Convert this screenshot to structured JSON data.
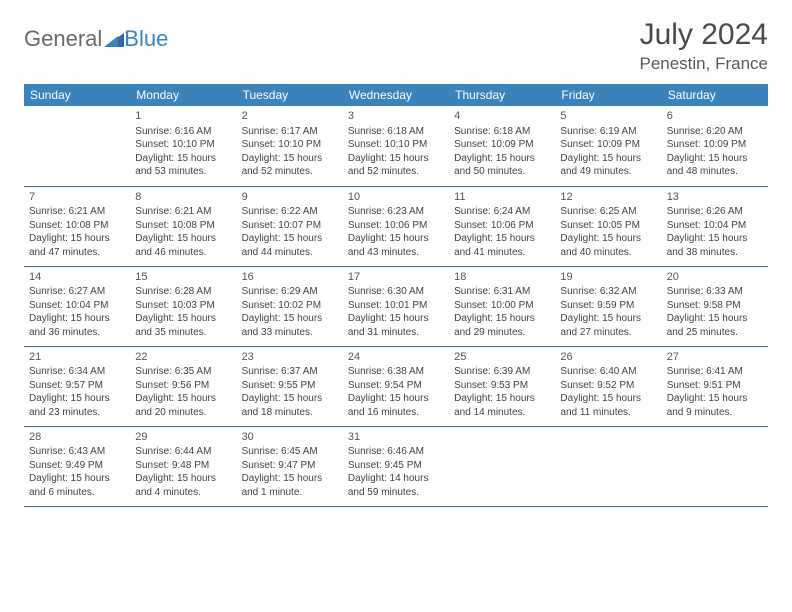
{
  "logo": {
    "part1": "General",
    "part2": "Blue"
  },
  "title": "July 2024",
  "location": "Penestin, France",
  "colors": {
    "header_bg": "#3b83bd",
    "rule": "#3b6a93"
  },
  "weekdays": [
    "Sunday",
    "Monday",
    "Tuesday",
    "Wednesday",
    "Thursday",
    "Friday",
    "Saturday"
  ],
  "weeks": [
    [
      null,
      {
        "n": "1",
        "sr": "6:16 AM",
        "ss": "10:10 PM",
        "dl": "15 hours and 53 minutes."
      },
      {
        "n": "2",
        "sr": "6:17 AM",
        "ss": "10:10 PM",
        "dl": "15 hours and 52 minutes."
      },
      {
        "n": "3",
        "sr": "6:18 AM",
        "ss": "10:10 PM",
        "dl": "15 hours and 52 minutes."
      },
      {
        "n": "4",
        "sr": "6:18 AM",
        "ss": "10:09 PM",
        "dl": "15 hours and 50 minutes."
      },
      {
        "n": "5",
        "sr": "6:19 AM",
        "ss": "10:09 PM",
        "dl": "15 hours and 49 minutes."
      },
      {
        "n": "6",
        "sr": "6:20 AM",
        "ss": "10:09 PM",
        "dl": "15 hours and 48 minutes."
      }
    ],
    [
      {
        "n": "7",
        "sr": "6:21 AM",
        "ss": "10:08 PM",
        "dl": "15 hours and 47 minutes."
      },
      {
        "n": "8",
        "sr": "6:21 AM",
        "ss": "10:08 PM",
        "dl": "15 hours and 46 minutes."
      },
      {
        "n": "9",
        "sr": "6:22 AM",
        "ss": "10:07 PM",
        "dl": "15 hours and 44 minutes."
      },
      {
        "n": "10",
        "sr": "6:23 AM",
        "ss": "10:06 PM",
        "dl": "15 hours and 43 minutes."
      },
      {
        "n": "11",
        "sr": "6:24 AM",
        "ss": "10:06 PM",
        "dl": "15 hours and 41 minutes."
      },
      {
        "n": "12",
        "sr": "6:25 AM",
        "ss": "10:05 PM",
        "dl": "15 hours and 40 minutes."
      },
      {
        "n": "13",
        "sr": "6:26 AM",
        "ss": "10:04 PM",
        "dl": "15 hours and 38 minutes."
      }
    ],
    [
      {
        "n": "14",
        "sr": "6:27 AM",
        "ss": "10:04 PM",
        "dl": "15 hours and 36 minutes."
      },
      {
        "n": "15",
        "sr": "6:28 AM",
        "ss": "10:03 PM",
        "dl": "15 hours and 35 minutes."
      },
      {
        "n": "16",
        "sr": "6:29 AM",
        "ss": "10:02 PM",
        "dl": "15 hours and 33 minutes."
      },
      {
        "n": "17",
        "sr": "6:30 AM",
        "ss": "10:01 PM",
        "dl": "15 hours and 31 minutes."
      },
      {
        "n": "18",
        "sr": "6:31 AM",
        "ss": "10:00 PM",
        "dl": "15 hours and 29 minutes."
      },
      {
        "n": "19",
        "sr": "6:32 AM",
        "ss": "9:59 PM",
        "dl": "15 hours and 27 minutes."
      },
      {
        "n": "20",
        "sr": "6:33 AM",
        "ss": "9:58 PM",
        "dl": "15 hours and 25 minutes."
      }
    ],
    [
      {
        "n": "21",
        "sr": "6:34 AM",
        "ss": "9:57 PM",
        "dl": "15 hours and 23 minutes."
      },
      {
        "n": "22",
        "sr": "6:35 AM",
        "ss": "9:56 PM",
        "dl": "15 hours and 20 minutes."
      },
      {
        "n": "23",
        "sr": "6:37 AM",
        "ss": "9:55 PM",
        "dl": "15 hours and 18 minutes."
      },
      {
        "n": "24",
        "sr": "6:38 AM",
        "ss": "9:54 PM",
        "dl": "15 hours and 16 minutes."
      },
      {
        "n": "25",
        "sr": "6:39 AM",
        "ss": "9:53 PM",
        "dl": "15 hours and 14 minutes."
      },
      {
        "n": "26",
        "sr": "6:40 AM",
        "ss": "9:52 PM",
        "dl": "15 hours and 11 minutes."
      },
      {
        "n": "27",
        "sr": "6:41 AM",
        "ss": "9:51 PM",
        "dl": "15 hours and 9 minutes."
      }
    ],
    [
      {
        "n": "28",
        "sr": "6:43 AM",
        "ss": "9:49 PM",
        "dl": "15 hours and 6 minutes."
      },
      {
        "n": "29",
        "sr": "6:44 AM",
        "ss": "9:48 PM",
        "dl": "15 hours and 4 minutes."
      },
      {
        "n": "30",
        "sr": "6:45 AM",
        "ss": "9:47 PM",
        "dl": "15 hours and 1 minute."
      },
      {
        "n": "31",
        "sr": "6:46 AM",
        "ss": "9:45 PM",
        "dl": "14 hours and 59 minutes."
      },
      null,
      null,
      null
    ]
  ],
  "labels": {
    "sunrise": "Sunrise:",
    "sunset": "Sunset:",
    "daylight": "Daylight:"
  }
}
